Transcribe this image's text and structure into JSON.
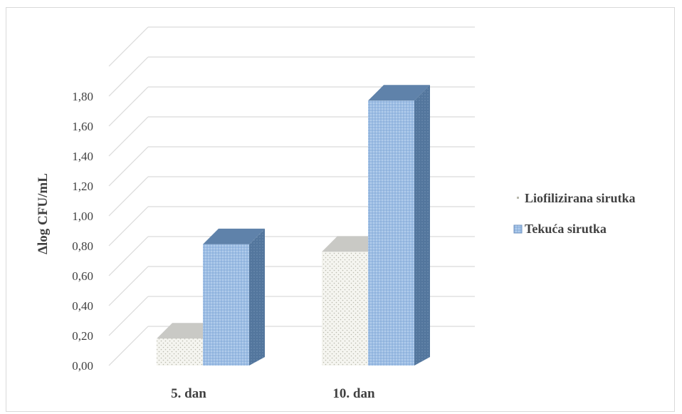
{
  "chart_data": {
    "type": "bar",
    "title": "",
    "ylabel": "Δlog CFU/mL",
    "xlabel": "",
    "ylim": [
      0,
      2.0
    ],
    "yticks": [
      "0,00",
      "0,20",
      "0,40",
      "0,60",
      "0,80",
      "1,00",
      "1,20",
      "1,40",
      "1,60",
      "1,80"
    ],
    "yticks_values": [
      0,
      0.2,
      0.4,
      0.6,
      0.8,
      1.0,
      1.2,
      1.4,
      1.6,
      1.8
    ],
    "categories": [
      "5. dan",
      "10. dan"
    ],
    "series": [
      {
        "name": "Liofilizirana sirutka",
        "values": [
          0.18,
          0.76
        ],
        "color": "#f4f4ef"
      },
      {
        "name": "Tekuća sirutka",
        "values": [
          0.81,
          1.77
        ],
        "color": "#9dbde3"
      }
    ],
    "grid": true,
    "legend_position": "right",
    "style": "3d-column"
  }
}
